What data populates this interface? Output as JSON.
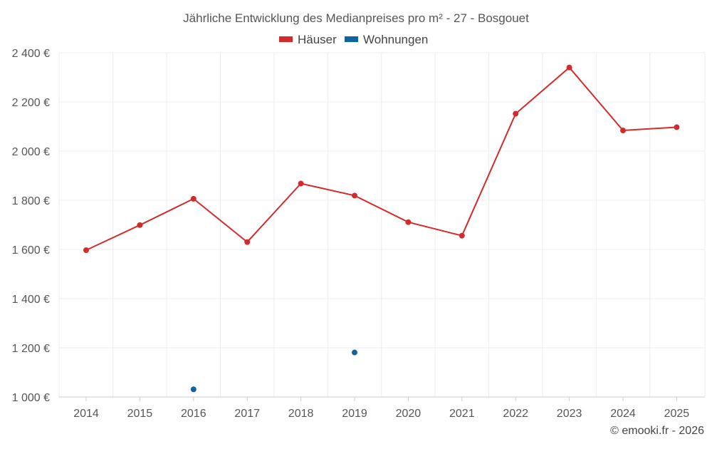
{
  "credit": "© emooki.fr - 2026",
  "colors": {
    "houses": "#d32b2b",
    "apartments": "#0f639f",
    "grid": "#ececec",
    "text": "#555555"
  },
  "chart_data": {
    "type": "line",
    "title": "Jährliche Entwicklung des Medianpreises pro m² - 27 - Bosgouet",
    "xlabel": "",
    "ylabel": "",
    "x": [
      "2014",
      "2015",
      "2016",
      "2017",
      "2018",
      "2019",
      "2020",
      "2021",
      "2022",
      "2023",
      "2024",
      "2025"
    ],
    "y_ticks": [
      "1 000 €",
      "1 200 €",
      "1 400 €",
      "1 600 €",
      "1 800 €",
      "2 000 €",
      "2 200 €",
      "2 400 €"
    ],
    "y_tick_values": [
      1000,
      1200,
      1400,
      1600,
      1800,
      2000,
      2200,
      2400
    ],
    "ylim": [
      1000,
      2400
    ],
    "grid": true,
    "legend_position": "top-center",
    "series": [
      {
        "name": "Häuser",
        "color": "#d32b2b",
        "values": [
          1597,
          1699,
          1806,
          1630,
          1868,
          1819,
          1711,
          1656,
          2152,
          2340,
          2084,
          2097
        ]
      },
      {
        "name": "Wohnungen",
        "color": "#0f639f",
        "values": [
          null,
          null,
          1031,
          null,
          null,
          1181,
          null,
          null,
          null,
          null,
          null,
          null
        ]
      }
    ]
  }
}
